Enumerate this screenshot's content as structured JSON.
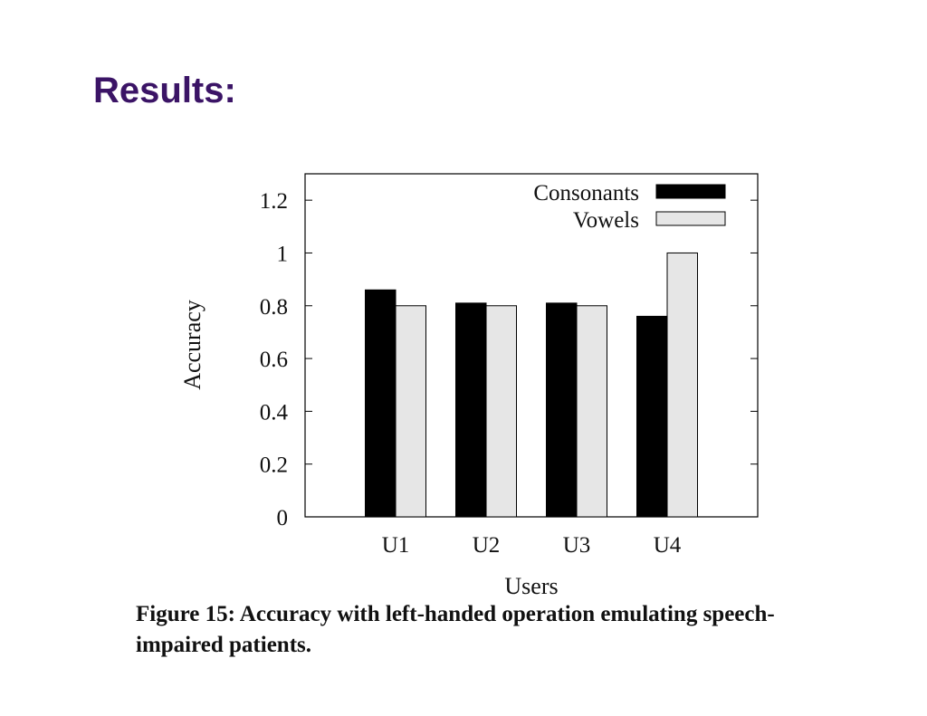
{
  "slide": {
    "title": "Results:"
  },
  "figure": {
    "caption": "Figure 15: Accuracy with left-handed operation emulating speech-impaired patients."
  },
  "chart_data": {
    "type": "bar",
    "title": "",
    "xlabel": "Users",
    "ylabel": "Accuracy",
    "categories": [
      "U1",
      "U2",
      "U3",
      "U4"
    ],
    "series": [
      {
        "name": "Consonants",
        "values": [
          0.86,
          0.81,
          0.81,
          0.76
        ],
        "color": "#000000"
      },
      {
        "name": "Vowels",
        "values": [
          0.8,
          0.8,
          0.8,
          1.0
        ],
        "color": "#e6e6e6"
      }
    ],
    "ylim": [
      0,
      1.3
    ],
    "yticks": [
      0,
      0.2,
      0.4,
      0.6,
      0.8,
      1,
      1.2
    ],
    "ytick_labels": [
      "0",
      "0.2",
      "0.4",
      "0.6",
      "0.8",
      "1",
      "1.2"
    ],
    "grid": false,
    "legend": "top-right"
  }
}
